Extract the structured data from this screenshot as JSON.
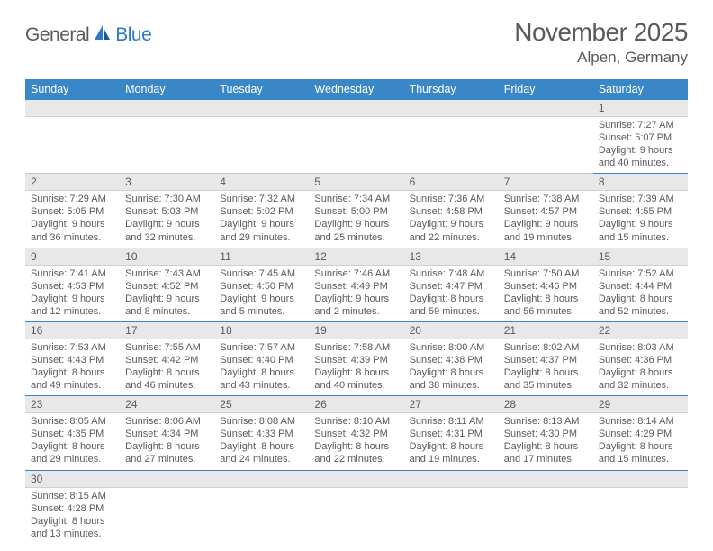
{
  "logo": {
    "text1": "General",
    "text2": "Blue"
  },
  "title": "November 2025",
  "location": "Alpen, Germany",
  "colors": {
    "header_bg": "#3a87c8",
    "header_fg": "#ffffff",
    "daynum_bg": "#e8e8e8",
    "row_divider": "#3a87c8",
    "text": "#5a5a5a",
    "logo_blue": "#2d7bc4"
  },
  "dayHeaders": [
    "Sunday",
    "Monday",
    "Tuesday",
    "Wednesday",
    "Thursday",
    "Friday",
    "Saturday"
  ],
  "weeks": [
    [
      null,
      null,
      null,
      null,
      null,
      null,
      {
        "n": "1",
        "sr": "Sunrise: 7:27 AM",
        "ss": "Sunset: 5:07 PM",
        "dl": "Daylight: 9 hours and 40 minutes."
      }
    ],
    [
      {
        "n": "2",
        "sr": "Sunrise: 7:29 AM",
        "ss": "Sunset: 5:05 PM",
        "dl": "Daylight: 9 hours and 36 minutes."
      },
      {
        "n": "3",
        "sr": "Sunrise: 7:30 AM",
        "ss": "Sunset: 5:03 PM",
        "dl": "Daylight: 9 hours and 32 minutes."
      },
      {
        "n": "4",
        "sr": "Sunrise: 7:32 AM",
        "ss": "Sunset: 5:02 PM",
        "dl": "Daylight: 9 hours and 29 minutes."
      },
      {
        "n": "5",
        "sr": "Sunrise: 7:34 AM",
        "ss": "Sunset: 5:00 PM",
        "dl": "Daylight: 9 hours and 25 minutes."
      },
      {
        "n": "6",
        "sr": "Sunrise: 7:36 AM",
        "ss": "Sunset: 4:58 PM",
        "dl": "Daylight: 9 hours and 22 minutes."
      },
      {
        "n": "7",
        "sr": "Sunrise: 7:38 AM",
        "ss": "Sunset: 4:57 PM",
        "dl": "Daylight: 9 hours and 19 minutes."
      },
      {
        "n": "8",
        "sr": "Sunrise: 7:39 AM",
        "ss": "Sunset: 4:55 PM",
        "dl": "Daylight: 9 hours and 15 minutes."
      }
    ],
    [
      {
        "n": "9",
        "sr": "Sunrise: 7:41 AM",
        "ss": "Sunset: 4:53 PM",
        "dl": "Daylight: 9 hours and 12 minutes."
      },
      {
        "n": "10",
        "sr": "Sunrise: 7:43 AM",
        "ss": "Sunset: 4:52 PM",
        "dl": "Daylight: 9 hours and 8 minutes."
      },
      {
        "n": "11",
        "sr": "Sunrise: 7:45 AM",
        "ss": "Sunset: 4:50 PM",
        "dl": "Daylight: 9 hours and 5 minutes."
      },
      {
        "n": "12",
        "sr": "Sunrise: 7:46 AM",
        "ss": "Sunset: 4:49 PM",
        "dl": "Daylight: 9 hours and 2 minutes."
      },
      {
        "n": "13",
        "sr": "Sunrise: 7:48 AM",
        "ss": "Sunset: 4:47 PM",
        "dl": "Daylight: 8 hours and 59 minutes."
      },
      {
        "n": "14",
        "sr": "Sunrise: 7:50 AM",
        "ss": "Sunset: 4:46 PM",
        "dl": "Daylight: 8 hours and 56 minutes."
      },
      {
        "n": "15",
        "sr": "Sunrise: 7:52 AM",
        "ss": "Sunset: 4:44 PM",
        "dl": "Daylight: 8 hours and 52 minutes."
      }
    ],
    [
      {
        "n": "16",
        "sr": "Sunrise: 7:53 AM",
        "ss": "Sunset: 4:43 PM",
        "dl": "Daylight: 8 hours and 49 minutes."
      },
      {
        "n": "17",
        "sr": "Sunrise: 7:55 AM",
        "ss": "Sunset: 4:42 PM",
        "dl": "Daylight: 8 hours and 46 minutes."
      },
      {
        "n": "18",
        "sr": "Sunrise: 7:57 AM",
        "ss": "Sunset: 4:40 PM",
        "dl": "Daylight: 8 hours and 43 minutes."
      },
      {
        "n": "19",
        "sr": "Sunrise: 7:58 AM",
        "ss": "Sunset: 4:39 PM",
        "dl": "Daylight: 8 hours and 40 minutes."
      },
      {
        "n": "20",
        "sr": "Sunrise: 8:00 AM",
        "ss": "Sunset: 4:38 PM",
        "dl": "Daylight: 8 hours and 38 minutes."
      },
      {
        "n": "21",
        "sr": "Sunrise: 8:02 AM",
        "ss": "Sunset: 4:37 PM",
        "dl": "Daylight: 8 hours and 35 minutes."
      },
      {
        "n": "22",
        "sr": "Sunrise: 8:03 AM",
        "ss": "Sunset: 4:36 PM",
        "dl": "Daylight: 8 hours and 32 minutes."
      }
    ],
    [
      {
        "n": "23",
        "sr": "Sunrise: 8:05 AM",
        "ss": "Sunset: 4:35 PM",
        "dl": "Daylight: 8 hours and 29 minutes."
      },
      {
        "n": "24",
        "sr": "Sunrise: 8:06 AM",
        "ss": "Sunset: 4:34 PM",
        "dl": "Daylight: 8 hours and 27 minutes."
      },
      {
        "n": "25",
        "sr": "Sunrise: 8:08 AM",
        "ss": "Sunset: 4:33 PM",
        "dl": "Daylight: 8 hours and 24 minutes."
      },
      {
        "n": "26",
        "sr": "Sunrise: 8:10 AM",
        "ss": "Sunset: 4:32 PM",
        "dl": "Daylight: 8 hours and 22 minutes."
      },
      {
        "n": "27",
        "sr": "Sunrise: 8:11 AM",
        "ss": "Sunset: 4:31 PM",
        "dl": "Daylight: 8 hours and 19 minutes."
      },
      {
        "n": "28",
        "sr": "Sunrise: 8:13 AM",
        "ss": "Sunset: 4:30 PM",
        "dl": "Daylight: 8 hours and 17 minutes."
      },
      {
        "n": "29",
        "sr": "Sunrise: 8:14 AM",
        "ss": "Sunset: 4:29 PM",
        "dl": "Daylight: 8 hours and 15 minutes."
      }
    ],
    [
      {
        "n": "30",
        "sr": "Sunrise: 8:15 AM",
        "ss": "Sunset: 4:28 PM",
        "dl": "Daylight: 8 hours and 13 minutes."
      },
      null,
      null,
      null,
      null,
      null,
      null
    ]
  ]
}
